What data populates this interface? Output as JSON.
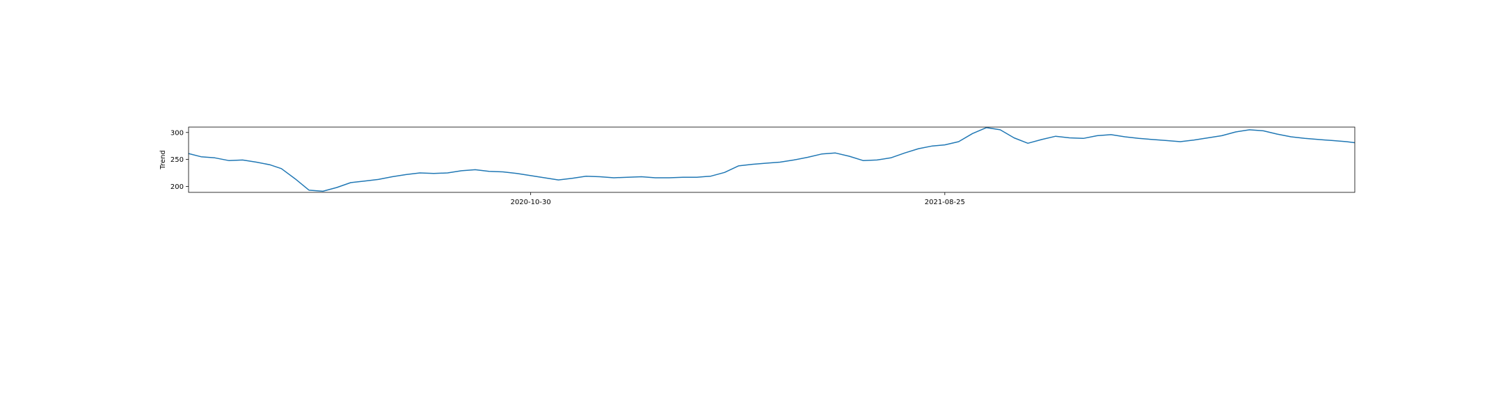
{
  "chart_data": {
    "type": "line",
    "title": "",
    "xlabel": "",
    "ylabel": "Trend",
    "xlim": [
      "2020-02-26",
      "2022-06-17"
    ],
    "ylim": [
      189,
      310
    ],
    "yticks": [
      200,
      250,
      300
    ],
    "xticks": [
      "2020-10-30",
      "2021-08-25"
    ],
    "grid": false,
    "legend": "none",
    "series": [
      {
        "color": "#1f77b4",
        "x": [
          "2020-02-26",
          "2020-03-06",
          "2020-03-16",
          "2020-03-26",
          "2020-04-05",
          "2020-04-15",
          "2020-04-25",
          "2020-05-03",
          "2020-05-13",
          "2020-05-23",
          "2020-06-02",
          "2020-06-12",
          "2020-06-22",
          "2020-07-02",
          "2020-07-12",
          "2020-07-22",
          "2020-08-01",
          "2020-08-11",
          "2020-08-21",
          "2020-08-31",
          "2020-09-10",
          "2020-09-20",
          "2020-09-30",
          "2020-10-10",
          "2020-10-20",
          "2020-10-30",
          "2020-11-09",
          "2020-11-19",
          "2020-11-29",
          "2020-12-09",
          "2020-12-19",
          "2020-12-29",
          "2021-01-08",
          "2021-01-18",
          "2021-01-28",
          "2021-02-07",
          "2021-02-17",
          "2021-02-27",
          "2021-03-09",
          "2021-03-19",
          "2021-03-29",
          "2021-04-08",
          "2021-04-18",
          "2021-04-28",
          "2021-05-08",
          "2021-05-18",
          "2021-05-28",
          "2021-06-07",
          "2021-06-17",
          "2021-06-27",
          "2021-07-07",
          "2021-07-17",
          "2021-07-27",
          "2021-08-06",
          "2021-08-16",
          "2021-08-25",
          "2021-09-04",
          "2021-09-14",
          "2021-09-24",
          "2021-10-04",
          "2021-10-14",
          "2021-10-24",
          "2021-11-03",
          "2021-11-13",
          "2021-11-23",
          "2021-12-03",
          "2021-12-13",
          "2021-12-23",
          "2022-01-02",
          "2022-01-12",
          "2022-01-22",
          "2022-02-01",
          "2022-02-11",
          "2022-02-21",
          "2022-03-03",
          "2022-03-13",
          "2022-03-23",
          "2022-04-02",
          "2022-04-12",
          "2022-04-22",
          "2022-05-02",
          "2022-05-12",
          "2022-05-22",
          "2022-06-01",
          "2022-06-11",
          "2022-06-17"
        ],
        "y": [
          261,
          255,
          253,
          248,
          249,
          245,
          240,
          233,
          214,
          193,
          191,
          198,
          207,
          210,
          213,
          218,
          222,
          225,
          224,
          225,
          229,
          231,
          228,
          227,
          224,
          220,
          216,
          212,
          215,
          219,
          218,
          216,
          217,
          218,
          216,
          216,
          217,
          217,
          219,
          226,
          238,
          241,
          243,
          245,
          249,
          254,
          260,
          262,
          256,
          248,
          249,
          253,
          262,
          270,
          275,
          277,
          283,
          298,
          309,
          305,
          290,
          280,
          287,
          293,
          290,
          289,
          294,
          296,
          292,
          289,
          287,
          285,
          283,
          286,
          290,
          294,
          301,
          305,
          303,
          297,
          292,
          289,
          287,
          285,
          283,
          281
        ]
      }
    ]
  }
}
